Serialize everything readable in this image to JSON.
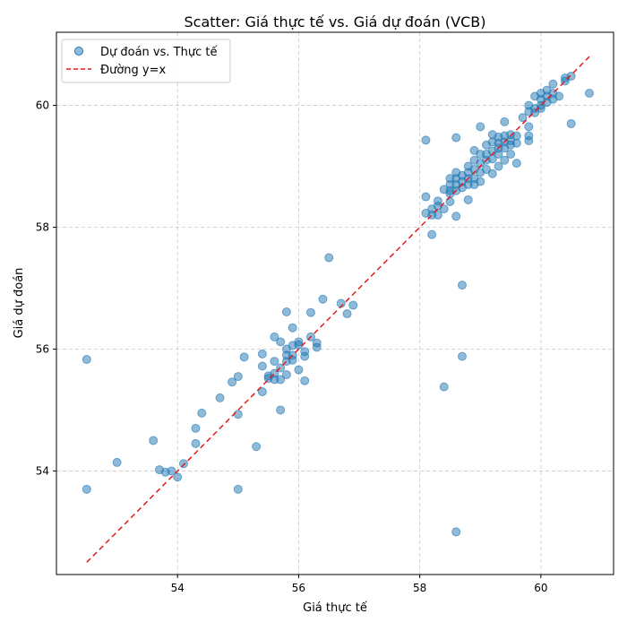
{
  "chart_data": {
    "type": "scatter",
    "title": "Scatter: Giá thực tế vs. Giá dự đoán (VCB)",
    "xlabel": "Giá thực tế",
    "ylabel": "Giá dự đoán",
    "xlim": [
      52.0,
      61.2
    ],
    "ylim": [
      52.3,
      61.2
    ],
    "xticks": [
      54,
      56,
      58,
      60
    ],
    "yticks": [
      54,
      56,
      58,
      60
    ],
    "grid": true,
    "legend_position": "top-left",
    "colors": {
      "points": "#1f77b4",
      "identity_line": "#e31a1c"
    },
    "series": [
      {
        "name": "Dự đoán vs. Thực tế",
        "kind": "scatter",
        "points": [
          [
            52.5,
            55.83
          ],
          [
            52.5,
            53.7
          ],
          [
            53.0,
            54.14
          ],
          [
            53.6,
            54.5
          ],
          [
            53.7,
            54.02
          ],
          [
            53.8,
            53.98
          ],
          [
            53.9,
            54.0
          ],
          [
            54.0,
            53.9
          ],
          [
            54.1,
            54.12
          ],
          [
            54.3,
            54.7
          ],
          [
            54.3,
            54.45
          ],
          [
            54.4,
            54.95
          ],
          [
            54.7,
            55.2
          ],
          [
            54.9,
            55.46
          ],
          [
            55.0,
            55.55
          ],
          [
            55.0,
            54.93
          ],
          [
            55.0,
            53.7
          ],
          [
            55.1,
            55.87
          ],
          [
            55.3,
            54.4
          ],
          [
            55.4,
            55.92
          ],
          [
            55.4,
            55.72
          ],
          [
            55.4,
            55.3
          ],
          [
            55.5,
            55.56
          ],
          [
            55.5,
            55.52
          ],
          [
            55.6,
            56.2
          ],
          [
            55.6,
            55.8
          ],
          [
            55.6,
            55.6
          ],
          [
            55.6,
            55.5
          ],
          [
            55.7,
            56.12
          ],
          [
            55.7,
            55.69
          ],
          [
            55.7,
            55.5
          ],
          [
            55.7,
            55.0
          ],
          [
            55.8,
            56.61
          ],
          [
            55.8,
            56.0
          ],
          [
            55.8,
            55.9
          ],
          [
            55.8,
            55.8
          ],
          [
            55.8,
            55.58
          ],
          [
            55.9,
            56.35
          ],
          [
            55.9,
            56.06
          ],
          [
            55.9,
            55.9
          ],
          [
            55.9,
            55.82
          ],
          [
            56.0,
            56.12
          ],
          [
            56.0,
            56.07
          ],
          [
            56.0,
            55.66
          ],
          [
            56.1,
            55.96
          ],
          [
            56.1,
            55.88
          ],
          [
            56.1,
            55.48
          ],
          [
            56.2,
            56.6
          ],
          [
            56.2,
            56.2
          ],
          [
            56.3,
            56.1
          ],
          [
            56.3,
            56.03
          ],
          [
            56.4,
            56.82
          ],
          [
            56.5,
            57.5
          ],
          [
            56.7,
            56.75
          ],
          [
            56.8,
            56.58
          ],
          [
            56.9,
            56.72
          ],
          [
            58.1,
            59.43
          ],
          [
            58.1,
            58.5
          ],
          [
            58.1,
            58.23
          ],
          [
            58.2,
            58.3
          ],
          [
            58.2,
            58.2
          ],
          [
            58.2,
            57.88
          ],
          [
            58.3,
            58.43
          ],
          [
            58.3,
            58.35
          ],
          [
            58.3,
            58.2
          ],
          [
            58.4,
            58.62
          ],
          [
            58.4,
            58.3
          ],
          [
            58.4,
            55.38
          ],
          [
            58.5,
            58.8
          ],
          [
            58.5,
            58.7
          ],
          [
            58.5,
            58.6
          ],
          [
            58.5,
            58.55
          ],
          [
            58.5,
            58.42
          ],
          [
            58.6,
            59.47
          ],
          [
            58.6,
            58.9
          ],
          [
            58.6,
            58.8
          ],
          [
            58.6,
            58.7
          ],
          [
            58.6,
            58.6
          ],
          [
            58.6,
            58.18
          ],
          [
            58.6,
            53.0
          ],
          [
            58.7,
            58.85
          ],
          [
            58.7,
            58.75
          ],
          [
            58.7,
            58.65
          ],
          [
            58.7,
            57.05
          ],
          [
            58.7,
            55.88
          ],
          [
            58.8,
            59.0
          ],
          [
            58.8,
            58.9
          ],
          [
            58.8,
            58.8
          ],
          [
            58.8,
            58.7
          ],
          [
            58.8,
            58.45
          ],
          [
            58.9,
            59.26
          ],
          [
            58.9,
            59.1
          ],
          [
            58.9,
            58.95
          ],
          [
            58.9,
            58.8
          ],
          [
            58.9,
            58.7
          ],
          [
            59.0,
            59.65
          ],
          [
            59.0,
            59.2
          ],
          [
            59.0,
            59.05
          ],
          [
            59.0,
            58.9
          ],
          [
            59.0,
            58.75
          ],
          [
            59.1,
            59.35
          ],
          [
            59.1,
            59.2
          ],
          [
            59.1,
            59.1
          ],
          [
            59.1,
            58.95
          ],
          [
            59.2,
            59.52
          ],
          [
            59.2,
            59.4
          ],
          [
            59.2,
            59.25
          ],
          [
            59.2,
            59.12
          ],
          [
            59.2,
            58.88
          ],
          [
            59.3,
            59.48
          ],
          [
            59.3,
            59.38
          ],
          [
            59.3,
            59.3
          ],
          [
            59.3,
            59.2
          ],
          [
            59.3,
            59.0
          ],
          [
            59.4,
            59.73
          ],
          [
            59.4,
            59.5
          ],
          [
            59.4,
            59.4
          ],
          [
            59.4,
            59.3
          ],
          [
            59.4,
            59.1
          ],
          [
            59.5,
            59.52
          ],
          [
            59.5,
            59.42
          ],
          [
            59.5,
            59.35
          ],
          [
            59.5,
            59.2
          ],
          [
            59.6,
            59.5
          ],
          [
            59.6,
            59.38
          ],
          [
            59.6,
            59.05
          ],
          [
            59.7,
            59.8
          ],
          [
            59.8,
            60.0
          ],
          [
            59.8,
            59.9
          ],
          [
            59.8,
            59.65
          ],
          [
            59.8,
            59.5
          ],
          [
            59.8,
            59.42
          ],
          [
            59.9,
            60.15
          ],
          [
            59.9,
            59.95
          ],
          [
            59.9,
            59.88
          ],
          [
            60.0,
            60.2
          ],
          [
            60.0,
            60.1
          ],
          [
            60.0,
            60.0
          ],
          [
            60.0,
            59.95
          ],
          [
            60.1,
            60.25
          ],
          [
            60.1,
            60.15
          ],
          [
            60.1,
            60.05
          ],
          [
            60.2,
            60.35
          ],
          [
            60.2,
            60.2
          ],
          [
            60.2,
            60.1
          ],
          [
            60.3,
            60.15
          ],
          [
            60.4,
            60.45
          ],
          [
            60.4,
            60.4
          ],
          [
            60.5,
            60.48
          ],
          [
            60.5,
            59.7
          ],
          [
            60.8,
            60.2
          ]
        ]
      },
      {
        "name": "Đường y=x",
        "kind": "line",
        "style": "dashed",
        "x": [
          52.5,
          60.8
        ],
        "y": [
          52.5,
          60.8
        ]
      }
    ]
  }
}
